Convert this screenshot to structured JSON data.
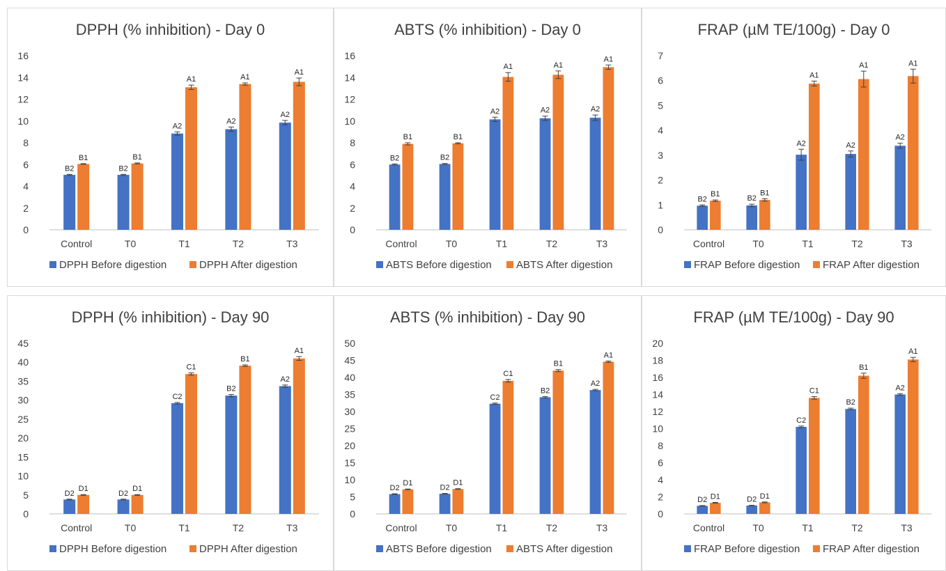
{
  "colors": {
    "before": "#4472C4",
    "after": "#ED7D31",
    "axis": "#bfbfbf",
    "text": "#404040",
    "errbar": "#404040"
  },
  "chart_data": [
    {
      "type": "bar",
      "title": "DPPH (% inhibition) - Day 0",
      "categories": [
        "Control",
        "T0",
        "T1",
        "T2",
        "T3"
      ],
      "ylim": [
        0,
        16
      ],
      "yticks": [
        0,
        2,
        4,
        6,
        8,
        10,
        12,
        14,
        16
      ],
      "legend_position": "bottom",
      "series": [
        {
          "name": "DPPH  Before digestion",
          "values": [
            5.05,
            5.05,
            8.85,
            9.25,
            9.85
          ],
          "errors": [
            0.05,
            0.05,
            0.15,
            0.2,
            0.2
          ],
          "labels": [
            "B2",
            "B2",
            "A2",
            "A2",
            "A2"
          ]
        },
        {
          "name": "DPPH  After digestion",
          "values": [
            6.05,
            6.1,
            13.1,
            13.4,
            13.6
          ],
          "errors": [
            0.03,
            0.05,
            0.2,
            0.1,
            0.35
          ],
          "labels": [
            "B1",
            "B1",
            "A1",
            "A1",
            "A1"
          ]
        }
      ]
    },
    {
      "type": "bar",
      "title": "ABTS (% inhibition) - Day 0",
      "categories": [
        "Control",
        "T0",
        "T1",
        "T2",
        "T3"
      ],
      "ylim": [
        0,
        16
      ],
      "yticks": [
        0,
        2,
        4,
        6,
        8,
        10,
        12,
        14,
        16
      ],
      "legend_position": "bottom",
      "series": [
        {
          "name": "ABTS Before digestion",
          "values": [
            6.0,
            6.05,
            10.15,
            10.25,
            10.3
          ],
          "errors": [
            0.05,
            0.05,
            0.2,
            0.2,
            0.25
          ],
          "labels": [
            "B2",
            "B2",
            "A2",
            "A2",
            "A2"
          ]
        },
        {
          "name": "ABTS After digestion",
          "values": [
            7.9,
            7.95,
            14.05,
            14.25,
            14.95
          ],
          "errors": [
            0.1,
            0.05,
            0.4,
            0.35,
            0.2
          ],
          "labels": [
            "B1",
            "B1",
            "A1",
            "A1",
            "A1"
          ]
        }
      ]
    },
    {
      "type": "bar",
      "title": "FRAP (µM TE/100g) - Day 0",
      "categories": [
        "Control",
        "T0",
        "T1",
        "T2",
        "T3"
      ],
      "ylim": [
        0,
        7
      ],
      "yticks": [
        0,
        1,
        2,
        3,
        4,
        5,
        6,
        7
      ],
      "legend_position": "bottom",
      "series": [
        {
          "name": "FRAP Before digestion",
          "values": [
            0.97,
            0.98,
            3.02,
            3.05,
            3.38
          ],
          "errors": [
            0.03,
            0.05,
            0.22,
            0.12,
            0.1
          ],
          "labels": [
            "B2",
            "B2",
            "A2",
            "A2",
            "A2"
          ]
        },
        {
          "name": "FRAP After digestion",
          "values": [
            1.17,
            1.2,
            5.88,
            6.06,
            6.18
          ],
          "errors": [
            0.03,
            0.05,
            0.1,
            0.32,
            0.28
          ],
          "labels": [
            "B1",
            "B1",
            "A1",
            "A1",
            "A1"
          ]
        }
      ]
    },
    {
      "type": "bar",
      "title": "DPPH (% inhibition) - Day 90",
      "categories": [
        "Control",
        "T0",
        "T1",
        "T2",
        "T3"
      ],
      "ylim": [
        0,
        45
      ],
      "yticks": [
        0,
        5,
        10,
        15,
        20,
        25,
        30,
        35,
        40,
        45
      ],
      "legend_position": "bottom",
      "series": [
        {
          "name": "DPPH  Before digestion",
          "values": [
            3.8,
            3.8,
            29.2,
            31.2,
            33.7
          ],
          "errors": [
            0.1,
            0.1,
            0.2,
            0.3,
            0.3
          ],
          "labels": [
            "D2",
            "D2",
            "C2",
            "B2",
            "A2"
          ]
        },
        {
          "name": "DPPH  After digestion",
          "values": [
            5.0,
            5.0,
            36.9,
            39.1,
            41.0
          ],
          "errors": [
            0.1,
            0.1,
            0.3,
            0.2,
            0.5
          ],
          "labels": [
            "D1",
            "D1",
            "C1",
            "B1",
            "A1"
          ]
        }
      ]
    },
    {
      "type": "bar",
      "title": "ABTS (% inhibition) - Day 90",
      "categories": [
        "Control",
        "T0",
        "T1",
        "T2",
        "T3"
      ],
      "ylim": [
        0,
        50
      ],
      "yticks": [
        0,
        5,
        10,
        15,
        20,
        25,
        30,
        35,
        40,
        45,
        50
      ],
      "legend_position": "bottom",
      "series": [
        {
          "name": "ABTS Before digestion",
          "values": [
            5.8,
            5.9,
            32.3,
            34.2,
            36.3
          ],
          "errors": [
            0.1,
            0.1,
            0.2,
            0.2,
            0.2
          ],
          "labels": [
            "D2",
            "D2",
            "C2",
            "B2",
            "A2"
          ]
        },
        {
          "name": "ABTS After digestion",
          "values": [
            7.2,
            7.3,
            39.0,
            42.0,
            44.6
          ],
          "errors": [
            0.1,
            0.1,
            0.4,
            0.3,
            0.2
          ],
          "labels": [
            "D1",
            "D1",
            "C1",
            "B1",
            "A1"
          ]
        }
      ]
    },
    {
      "type": "bar",
      "title": "FRAP (µM TE/100g) - Day 90",
      "categories": [
        "Control",
        "T0",
        "T1",
        "T2",
        "T3"
      ],
      "ylim": [
        0,
        20
      ],
      "yticks": [
        0,
        2,
        4,
        6,
        8,
        10,
        12,
        14,
        16,
        18,
        20
      ],
      "legend_position": "bottom",
      "series": [
        {
          "name": "FRAP Before digestion",
          "values": [
            0.95,
            0.98,
            10.2,
            12.3,
            14.0
          ],
          "errors": [
            0.03,
            0.03,
            0.1,
            0.1,
            0.1
          ],
          "labels": [
            "D2",
            "D2",
            "C2",
            "B2",
            "A2"
          ]
        },
        {
          "name": "FRAP After digestion",
          "values": [
            1.3,
            1.35,
            13.6,
            16.2,
            18.1
          ],
          "errors": [
            0.05,
            0.05,
            0.15,
            0.3,
            0.25
          ],
          "labels": [
            "D1",
            "D1",
            "C1",
            "B1",
            "A1"
          ]
        }
      ]
    }
  ]
}
